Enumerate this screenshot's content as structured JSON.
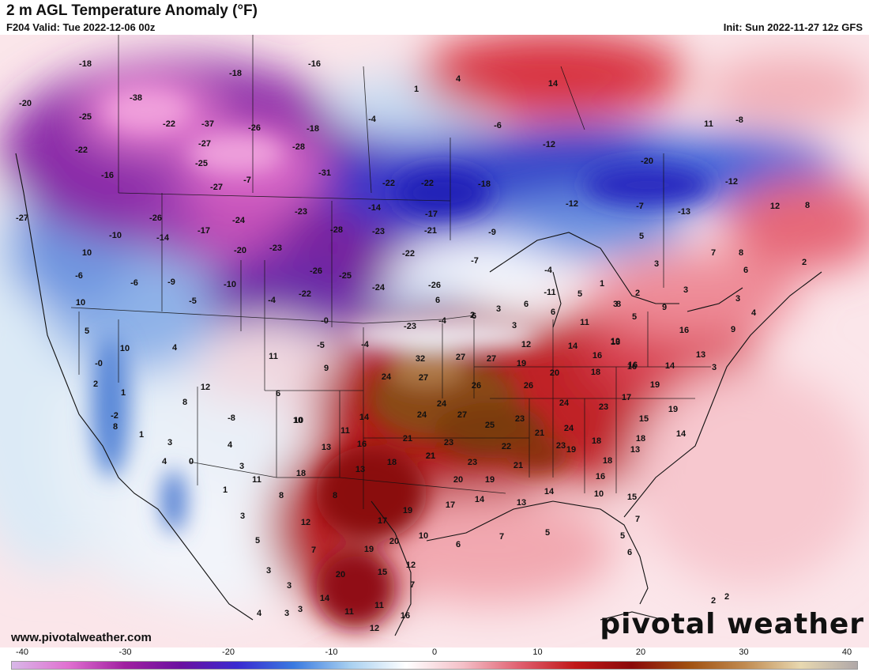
{
  "header": {
    "title": "2 m AGL Temperature Anomaly (°F)",
    "valid": "F204 Valid: Tue 2022-12-06 00z",
    "init": "Init: Sun 2022-11-27 12z GFS"
  },
  "footer": {
    "website": "www.pivotalweather.com",
    "brand": "pivotal weather"
  },
  "colorbar": {
    "ticks": [
      "-40",
      "-30",
      "-20",
      "-10",
      "0",
      "10",
      "20",
      "30",
      "40"
    ],
    "stops": [
      "#d8b8e8",
      "#e070d0",
      "#a020a0",
      "#6a10a0",
      "#3a2ad0",
      "#3a7ae0",
      "#a8d0f0",
      "#ffffff",
      "#f4c0c8",
      "#e06070",
      "#c01818",
      "#8a0a0a",
      "#a05010",
      "#c08a50",
      "#e8d8b0",
      "#b0a8a8"
    ]
  },
  "map": {
    "anomaly_labels": [
      {
        "t": "-18"
      },
      {
        "t": "-16"
      },
      {
        "t": "-18"
      },
      {
        "t": "1"
      },
      {
        "t": "4"
      },
      {
        "t": "14"
      },
      {
        "t": "-20"
      },
      {
        "t": "-38"
      },
      {
        "t": "-25"
      },
      {
        "t": "-22"
      },
      {
        "t": "-37"
      },
      {
        "t": "-26"
      },
      {
        "t": "-18"
      },
      {
        "t": "-4"
      },
      {
        "t": "-6"
      },
      {
        "t": "11"
      },
      {
        "t": "-8"
      },
      {
        "t": "-22"
      },
      {
        "t": "-27"
      },
      {
        "t": "-28"
      },
      {
        "t": "-12"
      },
      {
        "t": "-16"
      },
      {
        "t": "-25"
      },
      {
        "t": "-31"
      },
      {
        "t": "-22"
      },
      {
        "t": "-22"
      },
      {
        "t": "-18"
      },
      {
        "t": "-20"
      },
      {
        "t": "-12"
      },
      {
        "t": "-27"
      },
      {
        "t": "-27"
      },
      {
        "t": "-7"
      },
      {
        "t": "-13"
      },
      {
        "t": "-26"
      },
      {
        "t": "-24"
      },
      {
        "t": "-23"
      },
      {
        "t": "-14"
      },
      {
        "t": "-17"
      },
      {
        "t": "-12"
      },
      {
        "t": "-7"
      },
      {
        "t": "12"
      },
      {
        "t": "8"
      },
      {
        "t": "-10"
      },
      {
        "t": "-14"
      },
      {
        "t": "-17"
      },
      {
        "t": "-28"
      },
      {
        "t": "-23"
      },
      {
        "t": "-21"
      },
      {
        "t": "-9"
      },
      {
        "t": "5"
      },
      {
        "t": "10"
      },
      {
        "t": "-20"
      },
      {
        "t": "-23"
      },
      {
        "t": "-22"
      },
      {
        "t": "-7"
      },
      {
        "t": "7"
      },
      {
        "t": "8"
      },
      {
        "t": "2"
      },
      {
        "t": "-6"
      },
      {
        "t": "-6"
      },
      {
        "t": "-9"
      },
      {
        "t": "-10"
      },
      {
        "t": "-26"
      },
      {
        "t": "-25"
      },
      {
        "t": "-4"
      },
      {
        "t": "1"
      },
      {
        "t": "3"
      },
      {
        "t": "6"
      },
      {
        "t": "10"
      },
      {
        "t": "-5"
      },
      {
        "t": "-4"
      },
      {
        "t": "-22"
      },
      {
        "t": "-24"
      },
      {
        "t": "-26"
      },
      {
        "t": "-11"
      },
      {
        "t": "5"
      },
      {
        "t": "3"
      },
      {
        "t": "2"
      },
      {
        "t": "3"
      },
      {
        "t": "6"
      },
      {
        "t": "6"
      },
      {
        "t": "3"
      },
      {
        "t": "6"
      },
      {
        "t": "6"
      },
      {
        "t": "8"
      },
      {
        "t": "5"
      },
      {
        "t": "9"
      },
      {
        "t": "3"
      },
      {
        "t": "4"
      },
      {
        "t": "5"
      },
      {
        "t": "-0"
      },
      {
        "t": "-23"
      },
      {
        "t": "-4"
      },
      {
        "t": "2"
      },
      {
        "t": "3"
      },
      {
        "t": "11"
      },
      {
        "t": "10"
      },
      {
        "t": "9"
      },
      {
        "t": "10"
      },
      {
        "t": "4"
      },
      {
        "t": "-5"
      },
      {
        "t": "-4"
      },
      {
        "t": "9"
      },
      {
        "t": "12"
      },
      {
        "t": "14"
      },
      {
        "t": "13"
      },
      {
        "t": "16"
      },
      {
        "t": "-0"
      },
      {
        "t": "11"
      },
      {
        "t": "32"
      },
      {
        "t": "27"
      },
      {
        "t": "27"
      },
      {
        "t": "19"
      },
      {
        "t": "16"
      },
      {
        "t": "16"
      },
      {
        "t": "14"
      },
      {
        "t": "13"
      },
      {
        "t": "3"
      },
      {
        "t": "2"
      },
      {
        "t": "12"
      },
      {
        "t": "24"
      },
      {
        "t": "27"
      },
      {
        "t": "20"
      },
      {
        "t": "18"
      },
      {
        "t": "16"
      },
      {
        "t": "19"
      },
      {
        "t": "1"
      },
      {
        "t": "6"
      },
      {
        "t": "10"
      },
      {
        "t": "26"
      },
      {
        "t": "26"
      },
      {
        "t": "24"
      },
      {
        "t": "17"
      },
      {
        "t": "23"
      },
      {
        "t": "19"
      },
      {
        "t": "8"
      },
      {
        "t": "-8"
      },
      {
        "t": "10"
      },
      {
        "t": "14"
      },
      {
        "t": "24"
      },
      {
        "t": "24"
      },
      {
        "t": "27"
      },
      {
        "t": "23"
      },
      {
        "t": "15"
      },
      {
        "t": "-2"
      },
      {
        "t": "11"
      },
      {
        "t": "25"
      },
      {
        "t": "21"
      },
      {
        "t": "21"
      },
      {
        "t": "24"
      },
      {
        "t": "18"
      },
      {
        "t": "14"
      },
      {
        "t": "8"
      },
      {
        "t": "1"
      },
      {
        "t": "3"
      },
      {
        "t": "4"
      },
      {
        "t": "13"
      },
      {
        "t": "16"
      },
      {
        "t": "21"
      },
      {
        "t": "23"
      },
      {
        "t": "22"
      },
      {
        "t": "23"
      },
      {
        "t": "18"
      },
      {
        "t": "0"
      },
      {
        "t": "3"
      },
      {
        "t": "13"
      },
      {
        "t": "18"
      },
      {
        "t": "21"
      },
      {
        "t": "23"
      },
      {
        "t": "21"
      },
      {
        "t": "19"
      },
      {
        "t": "18"
      },
      {
        "t": "13"
      },
      {
        "t": "4"
      },
      {
        "t": "11"
      },
      {
        "t": "18"
      },
      {
        "t": "20"
      },
      {
        "t": "19"
      },
      {
        "t": "16"
      },
      {
        "t": "1"
      },
      {
        "t": "8"
      },
      {
        "t": "8"
      },
      {
        "t": "17"
      },
      {
        "t": "14"
      },
      {
        "t": "13"
      },
      {
        "t": "14"
      },
      {
        "t": "10"
      },
      {
        "t": "15"
      },
      {
        "t": "3"
      },
      {
        "t": "12"
      },
      {
        "t": "19"
      },
      {
        "t": "7"
      },
      {
        "t": "5"
      },
      {
        "t": "7"
      },
      {
        "t": "17"
      },
      {
        "t": "20"
      },
      {
        "t": "10"
      },
      {
        "t": "6"
      },
      {
        "t": "7"
      },
      {
        "t": "5"
      },
      {
        "t": "5"
      },
      {
        "t": "3"
      },
      {
        "t": "19"
      },
      {
        "t": "12"
      },
      {
        "t": "6"
      },
      {
        "t": "3"
      },
      {
        "t": "20"
      },
      {
        "t": "15"
      },
      {
        "t": "7"
      },
      {
        "t": "3"
      },
      {
        "t": "14"
      },
      {
        "t": "2"
      },
      {
        "t": "4"
      },
      {
        "t": "3"
      },
      {
        "t": "11"
      },
      {
        "t": "11"
      },
      {
        "t": "16"
      },
      {
        "t": "2"
      },
      {
        "t": "12"
      }
    ]
  }
}
